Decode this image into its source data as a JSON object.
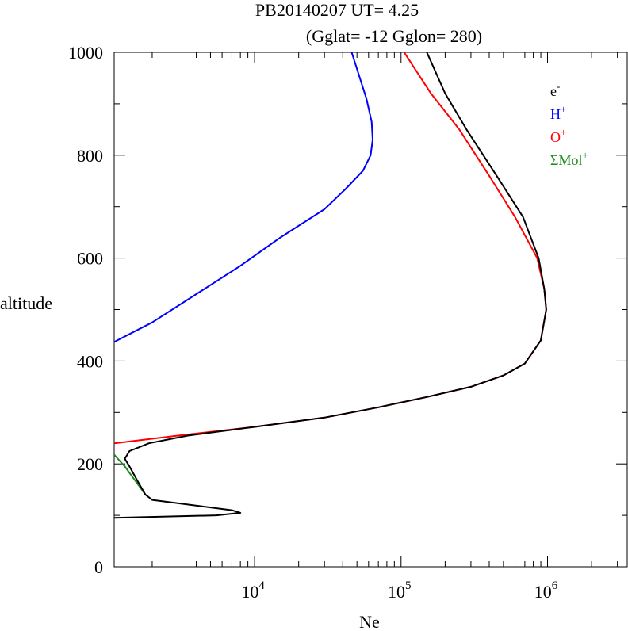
{
  "chart_data": {
    "type": "line",
    "title": "PB20140207   UT=  4.25",
    "subtitle": "(Gglat= -12   Gglon=  280)",
    "xlabel": "Ne",
    "ylabel": "altitude",
    "xscale": "log",
    "xlim": [
      1100,
      3500000
    ],
    "ylim": [
      0,
      1000
    ],
    "yticks": [
      0,
      200,
      400,
      600,
      800,
      1000
    ],
    "xtick_labels": [
      {
        "value": 10000,
        "base": "10",
        "exp": "4"
      },
      {
        "value": 100000,
        "base": "10",
        "exp": "5"
      },
      {
        "value": 1000000,
        "base": "10",
        "exp": "6"
      }
    ],
    "grid": false,
    "legend_position": "top-right",
    "series": [
      {
        "name": "H",
        "label_sup": "+",
        "color": "#0000ff",
        "points": [
          [
            1100,
            437
          ],
          [
            2000,
            475
          ],
          [
            4000,
            530
          ],
          [
            8000,
            585
          ],
          [
            15000,
            640
          ],
          [
            30000,
            695
          ],
          [
            42000,
            735
          ],
          [
            55000,
            770
          ],
          [
            62000,
            800
          ],
          [
            64000,
            830
          ],
          [
            63000,
            865
          ],
          [
            58000,
            910
          ],
          [
            51000,
            960
          ],
          [
            46000,
            1000
          ]
        ]
      },
      {
        "name": "O",
        "label_sup": "+",
        "color": "#ff0000",
        "points": [
          [
            1100,
            240
          ],
          [
            3000,
            255
          ],
          [
            10000,
            272
          ],
          [
            30000,
            290
          ],
          [
            70000,
            310
          ],
          [
            150000,
            330
          ],
          [
            300000,
            350
          ],
          [
            500000,
            372
          ],
          [
            700000,
            395
          ],
          [
            900000,
            440
          ],
          [
            980000,
            500
          ],
          [
            950000,
            540
          ],
          [
            850000,
            600
          ],
          [
            600000,
            680
          ],
          [
            400000,
            760
          ],
          [
            250000,
            850
          ],
          [
            160000,
            920
          ],
          [
            105000,
            1000
          ]
        ]
      },
      {
        "name": "ΣMol",
        "label_sup": "+",
        "color": "#1e8c1e",
        "points": [
          [
            1100,
            218
          ],
          [
            1300,
            195
          ],
          [
            1600,
            160
          ],
          [
            1800,
            140
          ]
        ]
      },
      {
        "name": "e",
        "label_sup": "-",
        "color": "#000000",
        "points": [
          [
            1100,
            95
          ],
          [
            5500,
            100
          ],
          [
            8000,
            105
          ],
          [
            7000,
            110
          ],
          [
            2000,
            130
          ],
          [
            1800,
            140
          ],
          [
            1600,
            165
          ],
          [
            1400,
            195
          ],
          [
            1300,
            210
          ],
          [
            1400,
            225
          ],
          [
            1900,
            240
          ],
          [
            3500,
            255
          ],
          [
            10000,
            272
          ],
          [
            30000,
            290
          ],
          [
            70000,
            310
          ],
          [
            150000,
            330
          ],
          [
            300000,
            350
          ],
          [
            500000,
            372
          ],
          [
            700000,
            395
          ],
          [
            900000,
            440
          ],
          [
            980000,
            500
          ],
          [
            950000,
            540
          ],
          [
            870000,
            600
          ],
          [
            680000,
            680
          ],
          [
            450000,
            760
          ],
          [
            280000,
            850
          ],
          [
            200000,
            920
          ],
          [
            150000,
            1000
          ]
        ]
      }
    ]
  }
}
